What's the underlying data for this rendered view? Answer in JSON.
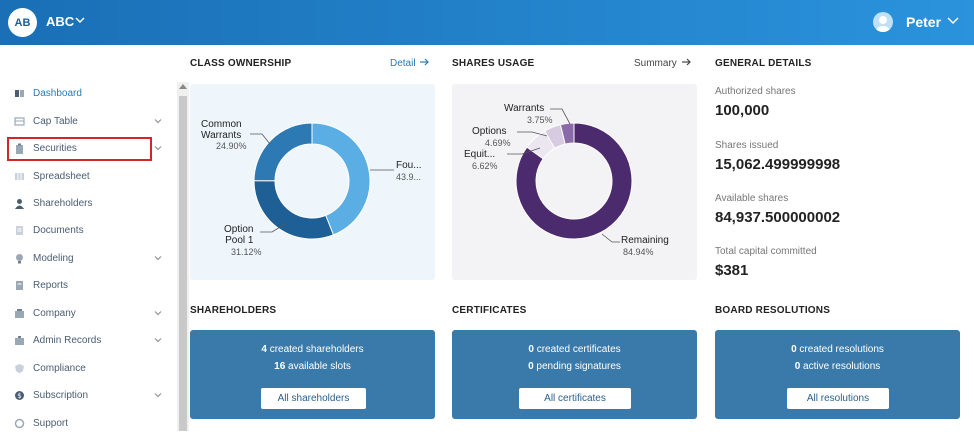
{
  "header": {
    "avatar_initials": "AB",
    "company": "ABC",
    "user_name": "Peter"
  },
  "sidebar": {
    "items": [
      {
        "label": "Dashboard",
        "icon": "dashboard-icon",
        "chevron": false
      },
      {
        "label": "Cap Table",
        "icon": "cap-table-icon",
        "chevron": true
      },
      {
        "label": "Securities",
        "icon": "clipboard-icon",
        "chevron": true
      },
      {
        "label": "Spreadsheet",
        "icon": "spreadsheet-icon",
        "chevron": false
      },
      {
        "label": "Shareholders",
        "icon": "person-icon",
        "chevron": false
      },
      {
        "label": "Documents",
        "icon": "documents-icon",
        "chevron": false
      },
      {
        "label": "Modeling",
        "icon": "lightbulb-icon",
        "chevron": true
      },
      {
        "label": "Reports",
        "icon": "reports-icon",
        "chevron": false
      },
      {
        "label": "Company",
        "icon": "building-icon",
        "chevron": true
      },
      {
        "label": "Admin Records",
        "icon": "admin-records-icon",
        "chevron": true
      },
      {
        "label": "Compliance",
        "icon": "shield-icon",
        "chevron": false
      },
      {
        "label": "Subscription",
        "icon": "dollar-icon",
        "chevron": true
      },
      {
        "label": "Support",
        "icon": "support-icon",
        "chevron": false
      }
    ]
  },
  "class_ownership": {
    "title": "CLASS OWNERSHIP",
    "link": "Detail",
    "slices": [
      {
        "label_line1": "Fou...",
        "label_line2": "",
        "pct": "43.9...",
        "value": 43.96,
        "color": "#5aaee3"
      },
      {
        "label_line1": "Option",
        "label_line2": "Pool 1",
        "pct": "31.12%",
        "value": 31.12,
        "color": "#1e5f96"
      },
      {
        "label_line1": "Common",
        "label_line2": "Warrants",
        "pct": "24.90%",
        "value": 24.9,
        "color": "#2c79b3"
      }
    ]
  },
  "shares_usage": {
    "title": "SHARES USAGE",
    "link": "Summary",
    "slices": [
      {
        "label": "Remaining",
        "pct": "84.94%",
        "value": 84.94,
        "color": "#4b2a6e"
      },
      {
        "label": "Equit...",
        "pct": "6.62%",
        "value": 6.62,
        "color": "#ebe6ef"
      },
      {
        "label": "Options",
        "pct": "4.69%",
        "value": 4.69,
        "color": "#d6cbe0"
      },
      {
        "label": "Warrants",
        "pct": "3.75%",
        "value": 3.75,
        "color": "#8a6aa8"
      }
    ]
  },
  "general_details": {
    "title": "GENERAL DETAILS",
    "authorized_label": "Authorized shares",
    "authorized_value": "100,000",
    "issued_label": "Shares issued",
    "issued_value": "15,062.499999998",
    "available_label": "Available shares",
    "available_value": "84,937.500000002",
    "capital_label": "Total capital committed",
    "capital_value": "$381"
  },
  "shareholders": {
    "title": "SHAREHOLDERS",
    "line1_count": "4",
    "line1_text": "created shareholders",
    "line2_count": "16",
    "line2_text": "available slots",
    "button": "All shareholders"
  },
  "certificates": {
    "title": "CERTIFICATES",
    "line1_count": "0",
    "line1_text": "created certificates",
    "line2_count": "0",
    "line2_text": "pending signatures",
    "button": "All certificates"
  },
  "board_resolutions": {
    "title": "BOARD RESOLUTIONS",
    "line1_count": "0",
    "line1_text": "created resolutions",
    "line2_count": "0",
    "line2_text": "active resolutions",
    "button": "All resolutions"
  },
  "colors": {
    "header_start": "#1a6fb6",
    "header_end": "#2a93dc",
    "accent": "#2a7ab8",
    "card": "#3a7aab",
    "highlight": "#d02828"
  }
}
